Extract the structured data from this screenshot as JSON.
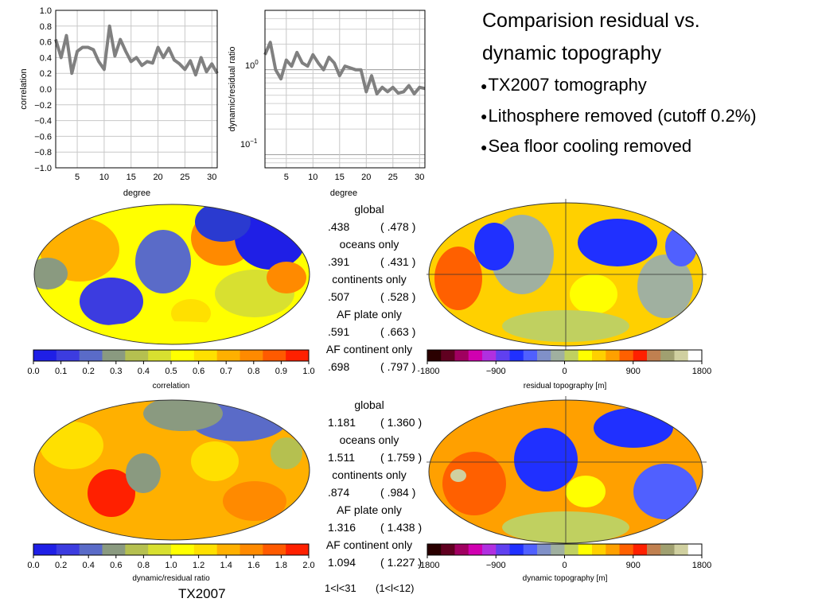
{
  "slide": {
    "title_line1": "Comparision residual vs.",
    "title_line2": "dynamic topography",
    "bullets": [
      "TX2007 tomography",
      "Lithosphere removed (cutoff 0.2%)",
      "Sea floor cooling removed"
    ],
    "model_label": "TX2007",
    "degree_range_left": "1<l<31",
    "degree_range_right": "(1<l<12)"
  },
  "colors": {
    "curve": "#808080",
    "correlation_scale": [
      "#1f1fe6",
      "#3c3ce0",
      "#5a6bc8",
      "#8a9a80",
      "#b5c050",
      "#d8e030",
      "#ffff00",
      "#ffe000",
      "#ffb000",
      "#ff8a00",
      "#ff5a00",
      "#ff2000"
    ],
    "topography_scale": [
      "#2a0000",
      "#600020",
      "#a00060",
      "#d000b0",
      "#b030e0",
      "#6040f0",
      "#2030ff",
      "#5060ff",
      "#8090c8",
      "#a0b0a0",
      "#c0d060",
      "#ffff00",
      "#ffd000",
      "#ffa000",
      "#ff6000",
      "#ff2000",
      "#c08050",
      "#a0a070",
      "#d0d0a0",
      "#ffffff"
    ]
  },
  "stats_top": [
    {
      "label": "global",
      "v1": ".438",
      "v2": ".478"
    },
    {
      "label": "oceans only",
      "v1": ".391",
      "v2": ".431"
    },
    {
      "label": "continents only",
      "v1": ".507",
      "v2": ".528"
    },
    {
      "label": "AF plate only",
      "v1": ".591",
      "v2": ".663"
    },
    {
      "label": "AF continent only",
      "v1": ".698",
      "v2": ".797"
    }
  ],
  "stats_bottom": [
    {
      "label": "global",
      "v1": "1.181",
      "v2": "1.360"
    },
    {
      "label": "oceans only",
      "v1": "1.511",
      "v2": "1.759"
    },
    {
      "label": "continents only",
      "v1": ".874",
      "v2": ".984"
    },
    {
      "label": "AF plate only",
      "v1": "1.316",
      "v2": "1.438"
    },
    {
      "label": "AF continent only",
      "v1": "1.094",
      "v2": "1.227"
    }
  ],
  "colorbars": {
    "corr": {
      "ticks": [
        "0.0",
        "0.1",
        "0.2",
        "0.3",
        "0.4",
        "0.5",
        "0.6",
        "0.7",
        "0.8",
        "0.9",
        "1.0"
      ],
      "label": "correlation"
    },
    "ratio": {
      "ticks": [
        "0.0",
        "0.2",
        "0.4",
        "0.6",
        "0.8",
        "1.0",
        "1.2",
        "1.4",
        "1.6",
        "1.8",
        "2.0"
      ],
      "label": "dynamic/residual ratio"
    },
    "resid": {
      "ticks": [
        "−1800",
        "−900",
        "0",
        "900",
        "1800"
      ],
      "label": "residual topography [m]"
    },
    "dyn": {
      "ticks": [
        "−1800",
        "−900",
        "0",
        "900",
        "1800"
      ],
      "label": "dynamic topography [m]"
    }
  },
  "chart_data": [
    {
      "type": "line",
      "xlabel": "degree",
      "ylabel": "correlation",
      "xlim": [
        1,
        31
      ],
      "ylim": [
        -1.0,
        1.0
      ],
      "xticks": [
        "5",
        "10",
        "15",
        "20",
        "25",
        "30"
      ],
      "yticks": [
        "1.0",
        "0.8",
        "0.6",
        "0.4",
        "0.2",
        "0.0",
        "−0.2",
        "−0.4",
        "−0.6",
        "−0.8",
        "−1.0"
      ],
      "grid": true,
      "x": [
        1,
        2,
        3,
        4,
        5,
        6,
        7,
        8,
        9,
        10,
        11,
        12,
        13,
        14,
        15,
        16,
        17,
        18,
        19,
        20,
        21,
        22,
        23,
        24,
        25,
        26,
        27,
        28,
        29,
        30,
        31
      ],
      "y": [
        0.63,
        0.4,
        0.68,
        0.2,
        0.48,
        0.53,
        0.53,
        0.5,
        0.35,
        0.25,
        0.8,
        0.42,
        0.63,
        0.48,
        0.35,
        0.4,
        0.3,
        0.35,
        0.33,
        0.53,
        0.4,
        0.52,
        0.37,
        0.32,
        0.25,
        0.36,
        0.18,
        0.4,
        0.22,
        0.32,
        0.2
      ]
    },
    {
      "type": "line",
      "xlabel": "degree",
      "ylabel": "dynamic/residual ratio",
      "scale": "log",
      "xlim": [
        1,
        31
      ],
      "ylim": [
        0.07,
        5
      ],
      "xticks": [
        "5",
        "10",
        "15",
        "20",
        "25",
        "30"
      ],
      "ytick_1": "10",
      "ytick_1_exp": "0",
      "ytick_2": "10",
      "ytick_2_exp": "−1",
      "grid": true,
      "x": [
        1,
        2,
        3,
        4,
        5,
        6,
        7,
        8,
        9,
        10,
        11,
        12,
        13,
        14,
        15,
        16,
        17,
        18,
        19,
        20,
        21,
        22,
        23,
        24,
        25,
        26,
        27,
        28,
        29,
        30,
        31
      ],
      "y": [
        1.5,
        2.1,
        1.0,
        0.78,
        1.3,
        1.1,
        1.6,
        1.2,
        1.1,
        1.5,
        1.2,
        1.0,
        1.4,
        1.2,
        0.85,
        1.1,
        1.05,
        1.0,
        1.0,
        0.55,
        0.85,
        0.52,
        0.62,
        0.55,
        0.62,
        0.53,
        0.55,
        0.65,
        0.52,
        0.62,
        0.6
      ]
    }
  ]
}
